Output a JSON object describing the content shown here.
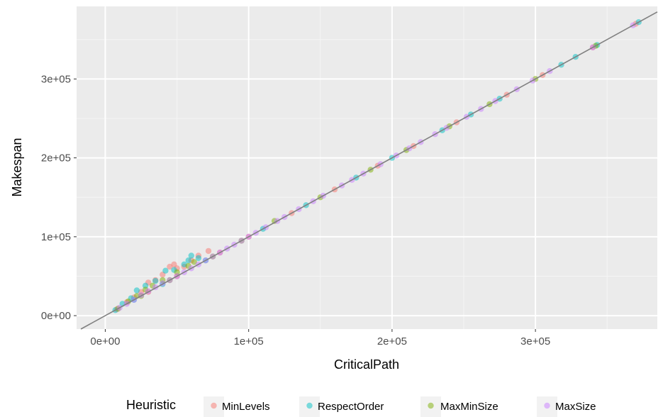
{
  "chart_data": {
    "type": "scatter",
    "xlabel": "CriticalPath",
    "ylabel": "Makespan",
    "xlim": [
      -20000,
      385000
    ],
    "ylim": [
      -17000,
      392000
    ],
    "x_ticks": [
      {
        "value": 0,
        "label": "0e+00"
      },
      {
        "value": 100000,
        "label": "1e+05"
      },
      {
        "value": 200000,
        "label": "2e+05"
      },
      {
        "value": 300000,
        "label": "3e+05"
      }
    ],
    "y_ticks": [
      {
        "value": 0,
        "label": "0e+00"
      },
      {
        "value": 100000,
        "label": "1e+05"
      },
      {
        "value": 200000,
        "label": "2e+05"
      },
      {
        "value": 300000,
        "label": "3e+05"
      }
    ],
    "reference_line": {
      "slope": 1,
      "intercept": 0,
      "color": "#808080"
    },
    "grid": true,
    "panel_background": "#ebebeb",
    "legend": {
      "title": "Heuristic",
      "position": "bottom",
      "entries": [
        "MinLevels",
        "RespectOrder",
        "MaxMinSize",
        "MaxSize"
      ]
    },
    "series": [
      {
        "name": "MinLevels",
        "color": "#f8766d",
        "points": [
          [
            8000,
            8000
          ],
          [
            15000,
            17000
          ],
          [
            20000,
            23000
          ],
          [
            25000,
            30000
          ],
          [
            30000,
            42000
          ],
          [
            35000,
            45000
          ],
          [
            40000,
            52000
          ],
          [
            45000,
            62000
          ],
          [
            48000,
            65000
          ],
          [
            50000,
            60000
          ],
          [
            55000,
            62000
          ],
          [
            60000,
            70000
          ],
          [
            65000,
            76000
          ],
          [
            72000,
            82000
          ],
          [
            30000,
            30000
          ],
          [
            50000,
            50000
          ],
          [
            80000,
            80000
          ],
          [
            100000,
            100000
          ],
          [
            130000,
            130000
          ],
          [
            160000,
            160000
          ],
          [
            190000,
            190000
          ],
          [
            215000,
            215000
          ],
          [
            245000,
            245000
          ],
          [
            280000,
            280000
          ],
          [
            305000,
            305000
          ],
          [
            340000,
            340000
          ],
          [
            370000,
            370000
          ]
        ]
      },
      {
        "name": "RespectOrder",
        "color": "#00bfc4",
        "points": [
          [
            7000,
            7000
          ],
          [
            12000,
            15000
          ],
          [
            18000,
            22000
          ],
          [
            22000,
            32000
          ],
          [
            28000,
            38000
          ],
          [
            35000,
            44000
          ],
          [
            42000,
            57000
          ],
          [
            48000,
            58000
          ],
          [
            55000,
            65000
          ],
          [
            60000,
            76000
          ],
          [
            65000,
            73000
          ],
          [
            58000,
            70000
          ],
          [
            20000,
            20000
          ],
          [
            40000,
            40000
          ],
          [
            70000,
            70000
          ],
          [
            110000,
            110000
          ],
          [
            140000,
            140000
          ],
          [
            175000,
            175000
          ],
          [
            200000,
            200000
          ],
          [
            235000,
            235000
          ],
          [
            255000,
            255000
          ],
          [
            275000,
            275000
          ],
          [
            318000,
            318000
          ],
          [
            328000,
            328000
          ],
          [
            343000,
            343000
          ],
          [
            372000,
            372000
          ]
        ]
      },
      {
        "name": "MaxMinSize",
        "color": "#7cae00",
        "points": [
          [
            9000,
            9000
          ],
          [
            16000,
            18000
          ],
          [
            22000,
            25000
          ],
          [
            28000,
            33000
          ],
          [
            33000,
            38000
          ],
          [
            40000,
            45000
          ],
          [
            50000,
            55000
          ],
          [
            58000,
            63000
          ],
          [
            62000,
            68000
          ],
          [
            25000,
            25000
          ],
          [
            45000,
            45000
          ],
          [
            75000,
            75000
          ],
          [
            95000,
            95000
          ],
          [
            118000,
            120000
          ],
          [
            150000,
            150000
          ],
          [
            185000,
            185000
          ],
          [
            210000,
            210000
          ],
          [
            240000,
            240000
          ],
          [
            268000,
            268000
          ],
          [
            300000,
            300000
          ],
          [
            342000,
            342000
          ]
        ]
      },
      {
        "name": "MaxSize",
        "color": "#c77cff",
        "points": [
          [
            10000,
            10000
          ],
          [
            15000,
            15000
          ],
          [
            20000,
            20000
          ],
          [
            25000,
            26000
          ],
          [
            30000,
            31000
          ],
          [
            35000,
            36000
          ],
          [
            40000,
            41000
          ],
          [
            45000,
            45000
          ],
          [
            50000,
            50000
          ],
          [
            55000,
            55000
          ],
          [
            60000,
            60000
          ],
          [
            65000,
            65000
          ],
          [
            70000,
            70000
          ],
          [
            75000,
            75000
          ],
          [
            80000,
            80000
          ],
          [
            85000,
            85000
          ],
          [
            90000,
            90000
          ],
          [
            95000,
            95000
          ],
          [
            100000,
            100000
          ],
          [
            105000,
            105000
          ],
          [
            112000,
            112000
          ],
          [
            120000,
            120000
          ],
          [
            125000,
            125000
          ],
          [
            135000,
            135000
          ],
          [
            145000,
            145000
          ],
          [
            152000,
            152000
          ],
          [
            165000,
            165000
          ],
          [
            172000,
            172000
          ],
          [
            180000,
            180000
          ],
          [
            192000,
            192000
          ],
          [
            203000,
            203000
          ],
          [
            212000,
            212000
          ],
          [
            220000,
            220000
          ],
          [
            230000,
            230000
          ],
          [
            238000,
            238000
          ],
          [
            252000,
            252000
          ],
          [
            262000,
            262000
          ],
          [
            272000,
            272000
          ],
          [
            287000,
            287000
          ],
          [
            298000,
            298000
          ],
          [
            310000,
            310000
          ],
          [
            340000,
            340000
          ],
          [
            368000,
            368000
          ]
        ]
      }
    ]
  }
}
